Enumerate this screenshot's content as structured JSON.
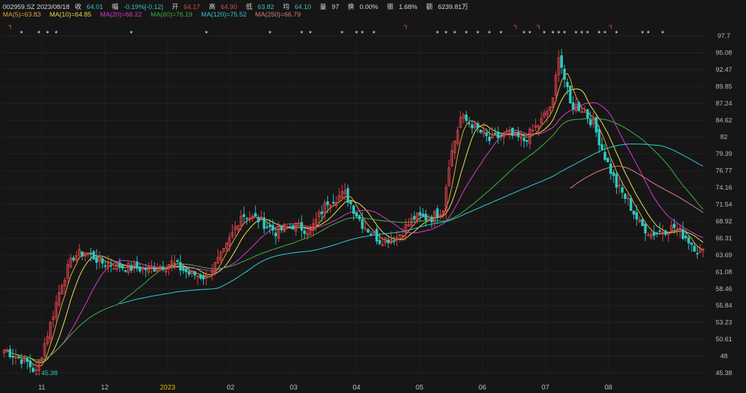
{
  "header": {
    "code_date": "002959.SZ 2023/08/18",
    "close_label": "收",
    "close_value": "64.01",
    "change_label": "幅",
    "change_value": "-0.19%[-0.12]",
    "open_label": "开",
    "open_value": "64.17",
    "high_label": "高",
    "high_value": "64.90",
    "low_label": "低",
    "low_value": "63.82",
    "avg_label": "均",
    "avg_value": "64.10",
    "volume_label": "量",
    "volume_value": "97",
    "turnover_label": "换",
    "turnover_value": "0.00%",
    "amplitude_label": "振",
    "amplitude_value": "1.68%",
    "amount_label": "额",
    "amount_value": "6239.81万"
  },
  "ma_legend": [
    {
      "label": "MA(5)=63.83",
      "color": "#e0a038"
    },
    {
      "label": "MA(10)=64.85",
      "color": "#e6dc4a"
    },
    {
      "label": "MA(20)=66.22",
      "color": "#d23cc8"
    },
    {
      "label": "MA(60)=76.19",
      "color": "#3fae3f"
    },
    {
      "label": "MA(120)=75.52",
      "color": "#2ec7d6"
    },
    {
      "label": "MA(250)=66.79",
      "color": "#e07a7a"
    }
  ],
  "chart_data": {
    "type": "candlestick",
    "y_ticks": [
      "97.7",
      "95.08",
      "92.47",
      "89.85",
      "87.24",
      "84.62",
      "82",
      "79.39",
      "76.77",
      "74.16",
      "71.54",
      "68.92",
      "66.31",
      "63.69",
      "61.08",
      "58.46",
      "55.84",
      "53.23",
      "50.61",
      "48",
      "45.38"
    ],
    "ylim": [
      45.38,
      97.7
    ],
    "x_labels": [
      {
        "label": "11",
        "month": 0,
        "highlight": false
      },
      {
        "label": "12",
        "month": 1,
        "highlight": false
      },
      {
        "label": "2023",
        "month": 2,
        "highlight": true
      },
      {
        "label": "02",
        "month": 3,
        "highlight": false
      },
      {
        "label": "03",
        "month": 4,
        "highlight": false
      },
      {
        "label": "04",
        "month": 5,
        "highlight": false
      },
      {
        "label": "05",
        "month": 6,
        "highlight": false
      },
      {
        "label": "06",
        "month": 7,
        "highlight": false
      },
      {
        "label": "07",
        "month": 8,
        "highlight": false
      },
      {
        "label": "08",
        "month": 9,
        "highlight": false
      }
    ],
    "anchors": [
      [
        0,
        49
      ],
      [
        8,
        47
      ],
      [
        11,
        45.4
      ],
      [
        16,
        53
      ],
      [
        20,
        59.5
      ],
      [
        24,
        63.5
      ],
      [
        28,
        64.2
      ],
      [
        34,
        62.5
      ],
      [
        42,
        61.8
      ],
      [
        50,
        61.5
      ],
      [
        58,
        62.5
      ],
      [
        64,
        60.8
      ],
      [
        70,
        60.3
      ],
      [
        76,
        64
      ],
      [
        82,
        70
      ],
      [
        88,
        69.2
      ],
      [
        94,
        67.3
      ],
      [
        100,
        68.3
      ],
      [
        106,
        67.5
      ],
      [
        112,
        72
      ],
      [
        118,
        73.2
      ],
      [
        124,
        68.5
      ],
      [
        130,
        66
      ],
      [
        136,
        66.5
      ],
      [
        142,
        69.5
      ],
      [
        148,
        69.5
      ],
      [
        152,
        71
      ],
      [
        154,
        78
      ],
      [
        158,
        85
      ],
      [
        162,
        84
      ],
      [
        168,
        81.5
      ],
      [
        174,
        82.5
      ],
      [
        180,
        81.5
      ],
      [
        186,
        84.5
      ],
      [
        190,
        87.5
      ],
      [
        192,
        95
      ],
      [
        196,
        87
      ],
      [
        200,
        86.5
      ],
      [
        204,
        84
      ],
      [
        208,
        79
      ],
      [
        212,
        74.5
      ],
      [
        216,
        72
      ],
      [
        220,
        68.5
      ],
      [
        224,
        67
      ],
      [
        228,
        67.5
      ],
      [
        232,
        68
      ],
      [
        236,
        66.5
      ],
      [
        240,
        64.5
      ],
      [
        242,
        64
      ]
    ],
    "low_marker": "←45.38",
    "high_marker": "97.7"
  }
}
